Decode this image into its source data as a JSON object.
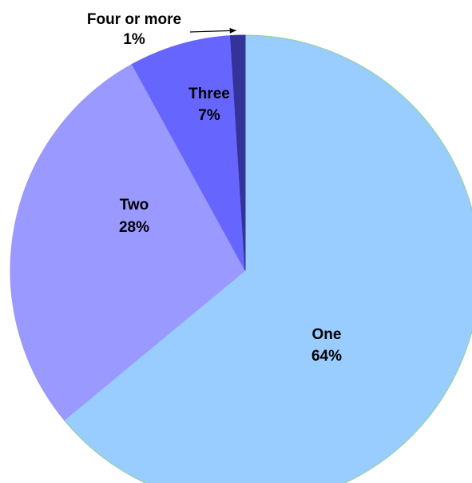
{
  "chart_data": {
    "type": "pie",
    "categories": [
      "One",
      "Two",
      "Three",
      "Four or more"
    ],
    "values": [
      64,
      28,
      7,
      1
    ],
    "value_labels": [
      "64%",
      "28%",
      "7%",
      "1%"
    ],
    "colors": [
      "#99ccff",
      "#9999ff",
      "#6666ff",
      "#333399"
    ],
    "title": "",
    "start": "12 o'clock, clockwise",
    "legend": "none"
  }
}
